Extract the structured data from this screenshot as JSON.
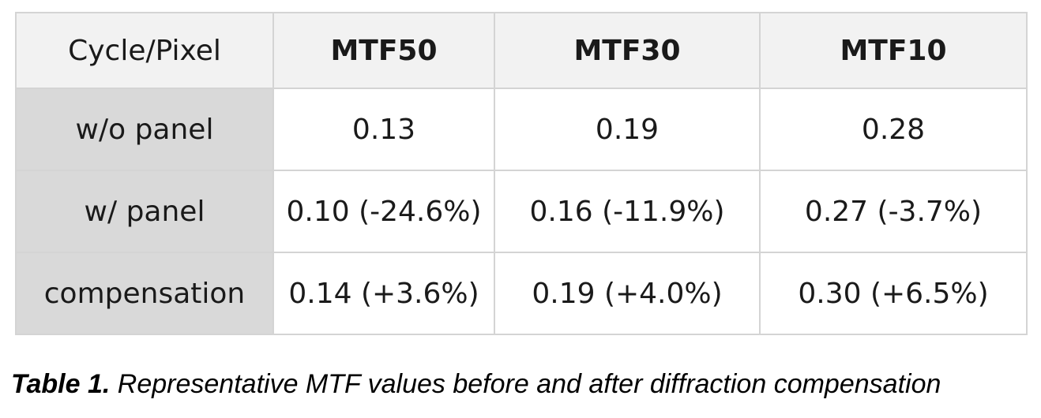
{
  "table": {
    "corner_header": "Cycle/Pixel",
    "columns": [
      "MTF50",
      "MTF30",
      "MTF10"
    ],
    "rows": [
      {
        "label": "w/o panel",
        "values": [
          "0.13",
          "0.19",
          "0.28"
        ]
      },
      {
        "label": "w/ panel",
        "values": [
          "0.10 (-24.6%)",
          "0.16 (-11.9%)",
          "0.27 (-3.7%)"
        ]
      },
      {
        "label": "compensation",
        "values": [
          "0.14 (+3.6%)",
          "0.19 (+4.0%)",
          "0.30 (+6.5%)"
        ]
      }
    ]
  },
  "caption": {
    "label": "Table 1.",
    "text": " Representative MTF values before and after diffraction compensation"
  },
  "colors": {
    "header_bg": "#f2f2f2",
    "row_header_bg": "#d9d9d9",
    "border": "#d4d4d4"
  }
}
